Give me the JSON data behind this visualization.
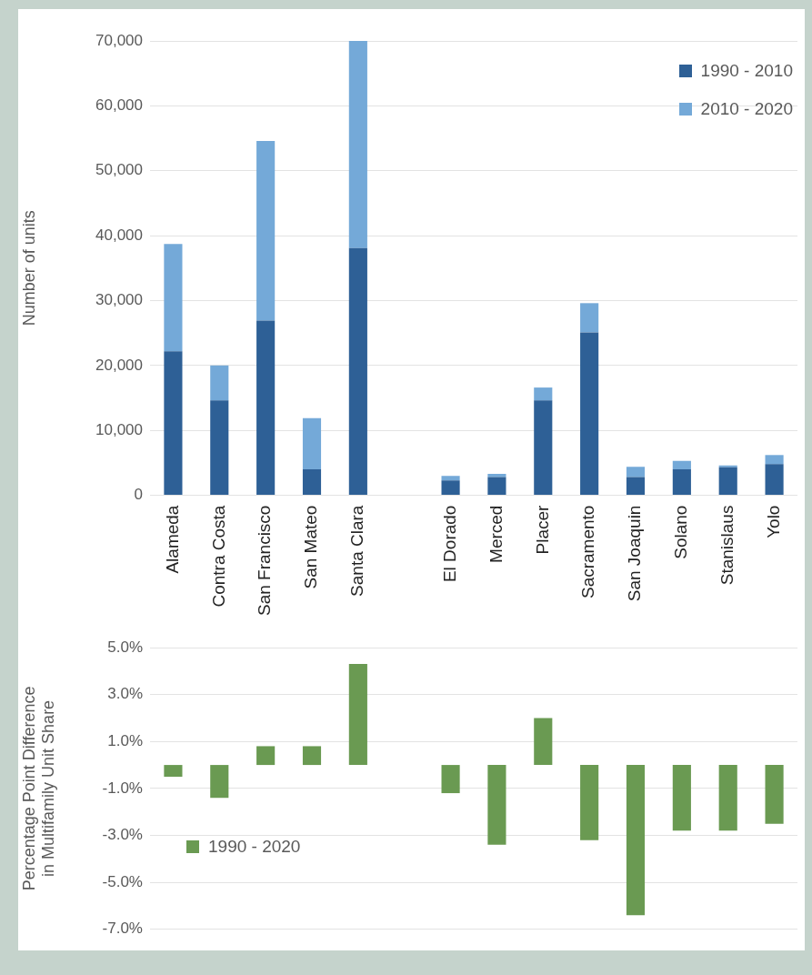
{
  "chart_data": [
    {
      "type": "bar",
      "stacked": true,
      "ylabel": "Number of units",
      "categories": [
        "Alameda",
        "Contra Costa",
        "San Francisco",
        "San Mateo",
        "Santa Clara",
        null,
        "El Dorado",
        "Merced",
        "Placer",
        "Sacramento",
        "San Joaquin",
        "Solano",
        "Stanislaus",
        "Yolo"
      ],
      "series": [
        {
          "name": "1990 - 2010",
          "color": "#2e6096",
          "values": [
            22200,
            14600,
            26900,
            4000,
            38100,
            null,
            2300,
            2800,
            14600,
            25100,
            2800,
            4000,
            4300,
            4800
          ]
        },
        {
          "name": "2010 - 2020",
          "color": "#74a9d8",
          "values": [
            16500,
            5400,
            27700,
            7900,
            31900,
            null,
            700,
            500,
            2000,
            4500,
            1600,
            1300,
            300,
            1400
          ]
        }
      ],
      "ylim": [
        0,
        70000
      ],
      "yticks": [
        0,
        {
          "value": 10000,
          "label": "10,000"
        },
        {
          "value": 20000,
          "label": "20,000"
        },
        {
          "value": 30000,
          "label": "30,000"
        },
        {
          "value": 40000,
          "label": "40,000"
        },
        {
          "value": 50000,
          "label": "50,000"
        },
        {
          "value": 60000,
          "label": "60,000"
        },
        {
          "value": 70000,
          "label": "70,000"
        }
      ],
      "grid": "y",
      "legend": "top right"
    },
    {
      "type": "bar",
      "ylabel": "Percentage Point Difference\nin Multifamily Unit Share",
      "categories": [
        null,
        null,
        null,
        null,
        null,
        null,
        null,
        null,
        null,
        null,
        null,
        null,
        null,
        null
      ],
      "series": [
        {
          "name": "1990 - 2020",
          "color": "#6a9a52",
          "values": [
            -0.5,
            -1.4,
            0.8,
            0.8,
            4.3,
            null,
            -1.2,
            -3.4,
            2.0,
            -3.2,
            -6.4,
            -2.8,
            -2.8,
            -2.5
          ]
        }
      ],
      "ylim": [
        -7,
        5
      ],
      "yticks": [
        {
          "value": 5,
          "label": "5.0%"
        },
        {
          "value": 3,
          "label": "3.0%"
        },
        {
          "value": 1,
          "label": "1.0%"
        },
        {
          "value": -1,
          "label": "-1.0%"
        },
        {
          "value": -3,
          "label": "-3.0%"
        },
        {
          "value": -5,
          "label": "-5.0%"
        },
        {
          "value": -7,
          "label": "-7.0%"
        }
      ],
      "grid": "y",
      "legend": "bottom left",
      "tick_labels": "y"
    }
  ]
}
